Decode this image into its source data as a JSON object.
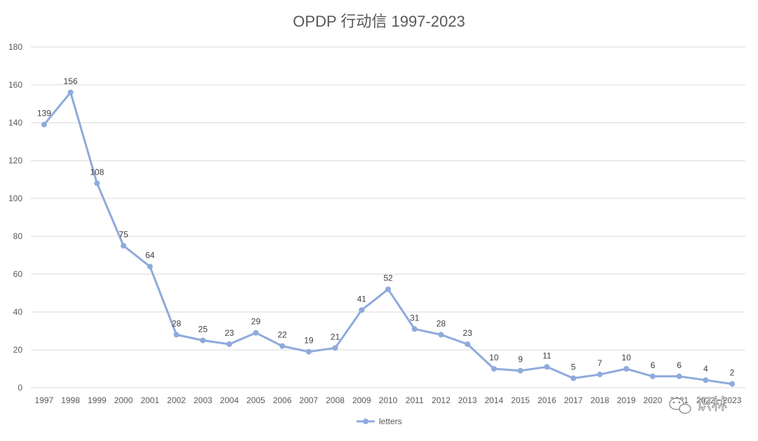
{
  "chart_data": {
    "type": "line",
    "title": "OPDP 行动信 1997-2023",
    "xlabel": "",
    "ylabel": "",
    "categories": [
      "1997",
      "1998",
      "1999",
      "2000",
      "2001",
      "2002",
      "2003",
      "2004",
      "2005",
      "2006",
      "2007",
      "2008",
      "2009",
      "2010",
      "2011",
      "2012",
      "2013",
      "2014",
      "2015",
      "2016",
      "2017",
      "2018",
      "2019",
      "2020",
      "2021",
      "2022",
      "2023"
    ],
    "series": [
      {
        "name": "letters",
        "values": [
          139,
          156,
          108,
          75,
          64,
          28,
          25,
          23,
          29,
          22,
          19,
          21,
          41,
          52,
          31,
          28,
          23,
          10,
          9,
          11,
          5,
          7,
          10,
          6,
          6,
          4,
          2
        ]
      }
    ],
    "ylim": [
      0,
      180
    ],
    "yticks": [
      0,
      20,
      40,
      60,
      80,
      100,
      120,
      140,
      160,
      180
    ],
    "grid": true,
    "legend_position": "bottom-center",
    "data_labels": true,
    "colors": {
      "series": "#8faadc",
      "grid": "#d9d9d9",
      "text": "#595959"
    }
  },
  "watermark": {
    "text": "识林",
    "icon": "wechat-icon"
  }
}
